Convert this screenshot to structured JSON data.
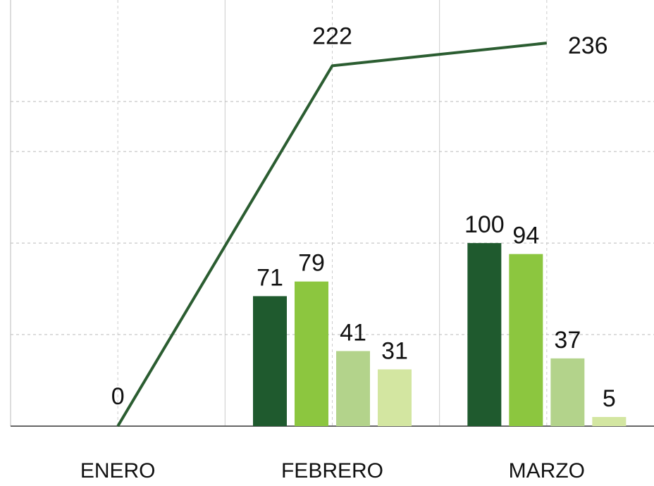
{
  "chart_data": {
    "type": "bar",
    "categories": [
      "ENERO",
      "FEBRERO",
      "MARZO"
    ],
    "series": [
      {
        "color": "#1f5a2e",
        "values": [
          null,
          71,
          100
        ]
      },
      {
        "color": "#8cc63f",
        "values": [
          null,
          79,
          94
        ]
      },
      {
        "color": "#b3d38b",
        "values": [
          null,
          41,
          37
        ]
      },
      {
        "color": "#d3e6a1",
        "values": [
          null,
          31,
          5
        ]
      },
      {
        "type": "line",
        "axis": "y2",
        "color": "#2b5d31",
        "values": [
          0,
          222,
          236
        ]
      }
    ],
    "ylim": [
      0,
      227
    ],
    "yticks": [
      0,
      50,
      100,
      150
    ],
    "y2lim": [
      0,
      256
    ],
    "y2ticks": [
      200
    ],
    "grid": true
  }
}
